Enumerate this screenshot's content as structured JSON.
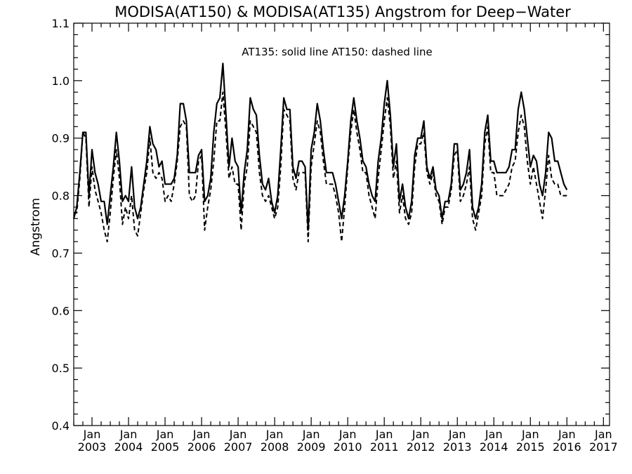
{
  "chart_data": {
    "type": "line",
    "title": "MODISA(AT150) & MODISA(AT135)  Angstrom for Deep−Water",
    "ylabel": "Angstrom",
    "xlabel": "",
    "annotation": "AT135: solid line   AT150: dashed line",
    "ylim": [
      0.4,
      1.1
    ],
    "y_ticks": [
      0.4,
      0.5,
      0.6,
      0.7,
      0.8,
      0.9,
      1.0,
      1.1
    ],
    "y_tick_labels": [
      "0.4",
      "0.5",
      "0.6",
      "0.7",
      "0.8",
      "0.9",
      "1.0",
      "1.1"
    ],
    "xlim": [
      "2002-07",
      "2017-03"
    ],
    "x_ticks": [
      "2003-01",
      "2004-01",
      "2005-01",
      "2006-01",
      "2007-01",
      "2008-01",
      "2009-01",
      "2010-01",
      "2011-01",
      "2012-01",
      "2013-01",
      "2014-01",
      "2015-01",
      "2016-01",
      "2017-01"
    ],
    "x_tick_labels": [
      [
        "Jan",
        "2003"
      ],
      [
        "Jan",
        "2004"
      ],
      [
        "Jan",
        "2005"
      ],
      [
        "Jan",
        "2006"
      ],
      [
        "Jan",
        "2007"
      ],
      [
        "Jan",
        "2008"
      ],
      [
        "Jan",
        "2009"
      ],
      [
        "Jan",
        "2010"
      ],
      [
        "Jan",
        "2011"
      ],
      [
        "Jan",
        "2012"
      ],
      [
        "Jan",
        "2013"
      ],
      [
        "Jan",
        "2014"
      ],
      [
        "Jan",
        "2015"
      ],
      [
        "Jan",
        "2016"
      ],
      [
        "Jan",
        "2017"
      ]
    ],
    "grid": false,
    "x_start": "2002-07",
    "x_step": "1 month",
    "series": [
      {
        "style": "solid",
        "values": [
          0.76,
          0.78,
          0.84,
          0.91,
          0.91,
          0.8,
          0.88,
          0.84,
          0.82,
          0.79,
          0.79,
          0.75,
          0.8,
          0.85,
          0.91,
          0.86,
          0.79,
          0.8,
          0.79,
          0.85,
          0.78,
          0.76,
          0.78,
          0.82,
          0.86,
          0.92,
          0.89,
          0.88,
          0.85,
          0.86,
          0.82,
          0.82,
          0.82,
          0.83,
          0.87,
          0.96,
          0.96,
          0.93,
          0.84,
          0.84,
          0.84,
          0.87,
          0.88,
          0.79,
          0.8,
          0.83,
          0.91,
          0.96,
          0.97,
          1.03,
          0.94,
          0.85,
          0.9,
          0.86,
          0.85,
          0.77,
          0.84,
          0.88,
          0.97,
          0.95,
          0.94,
          0.87,
          0.82,
          0.81,
          0.83,
          0.79,
          0.77,
          0.8,
          0.88,
          0.97,
          0.95,
          0.95,
          0.85,
          0.83,
          0.86,
          0.86,
          0.85,
          0.74,
          0.88,
          0.91,
          0.96,
          0.93,
          0.88,
          0.84,
          0.84,
          0.84,
          0.82,
          0.79,
          0.76,
          0.8,
          0.86,
          0.93,
          0.97,
          0.93,
          0.9,
          0.86,
          0.85,
          0.82,
          0.8,
          0.79,
          0.86,
          0.9,
          0.96,
          1.0,
          0.94,
          0.85,
          0.89,
          0.79,
          0.82,
          0.78,
          0.76,
          0.79,
          0.87,
          0.9,
          0.9,
          0.93,
          0.85,
          0.83,
          0.85,
          0.81,
          0.8,
          0.76,
          0.79,
          0.79,
          0.82,
          0.89,
          0.89,
          0.81,
          0.82,
          0.84,
          0.88,
          0.78,
          0.76,
          0.78,
          0.82,
          0.91,
          0.94,
          0.86,
          0.86,
          0.84,
          0.84,
          0.84,
          0.84,
          0.85,
          0.88,
          0.88,
          0.95,
          0.98,
          0.95,
          0.9,
          0.85,
          0.87,
          0.86,
          0.82,
          0.8,
          0.84,
          0.91,
          0.9,
          0.86,
          0.86,
          0.84,
          0.82,
          0.81
        ]
      },
      {
        "style": "dashed",
        "values": [
          0.77,
          0.77,
          0.83,
          0.91,
          0.9,
          0.78,
          0.85,
          0.81,
          0.79,
          0.77,
          0.74,
          0.72,
          0.77,
          0.83,
          0.88,
          0.83,
          0.75,
          0.78,
          0.76,
          0.8,
          0.74,
          0.73,
          0.77,
          0.81,
          0.84,
          0.9,
          0.84,
          0.83,
          0.84,
          0.83,
          0.79,
          0.8,
          0.79,
          0.82,
          0.86,
          0.92,
          0.93,
          0.92,
          0.8,
          0.79,
          0.8,
          0.86,
          0.87,
          0.74,
          0.78,
          0.81,
          0.86,
          0.93,
          0.93,
          0.98,
          0.91,
          0.83,
          0.85,
          0.82,
          0.82,
          0.74,
          0.82,
          0.85,
          0.93,
          0.92,
          0.91,
          0.84,
          0.8,
          0.79,
          0.8,
          0.78,
          0.76,
          0.78,
          0.85,
          0.95,
          0.94,
          0.93,
          0.83,
          0.81,
          0.84,
          0.84,
          0.84,
          0.72,
          0.85,
          0.89,
          0.93,
          0.91,
          0.86,
          0.82,
          0.82,
          0.82,
          0.8,
          0.77,
          0.72,
          0.78,
          0.85,
          0.91,
          0.95,
          0.91,
          0.88,
          0.84,
          0.84,
          0.8,
          0.78,
          0.76,
          0.83,
          0.88,
          0.93,
          0.97,
          0.92,
          0.83,
          0.86,
          0.77,
          0.8,
          0.76,
          0.75,
          0.77,
          0.85,
          0.89,
          0.89,
          0.91,
          0.84,
          0.82,
          0.84,
          0.8,
          0.79,
          0.75,
          0.78,
          0.78,
          0.81,
          0.87,
          0.88,
          0.79,
          0.8,
          0.82,
          0.85,
          0.76,
          0.74,
          0.77,
          0.8,
          0.89,
          0.92,
          0.84,
          0.84,
          0.8,
          0.8,
          0.8,
          0.81,
          0.82,
          0.85,
          0.86,
          0.91,
          0.94,
          0.92,
          0.86,
          0.82,
          0.85,
          0.82,
          0.79,
          0.76,
          0.81,
          0.87,
          0.83,
          0.82,
          0.82,
          0.8,
          0.8,
          0.8
        ]
      }
    ]
  }
}
